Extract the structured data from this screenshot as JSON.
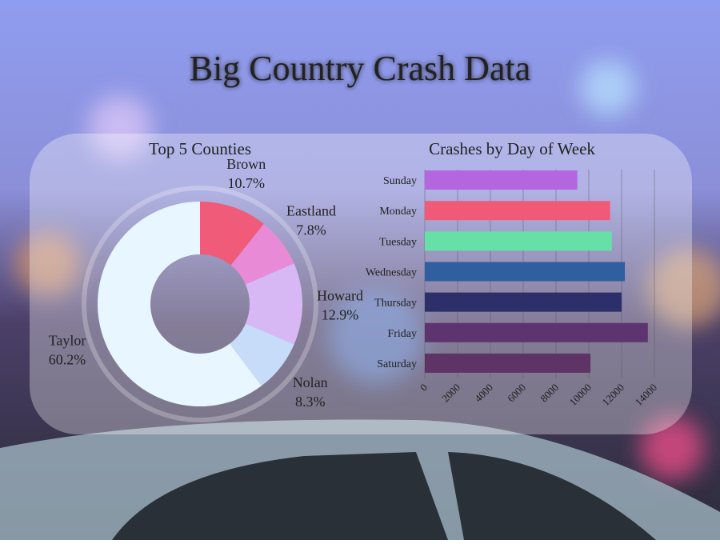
{
  "title": "Big Country Crash Data",
  "chart_data": [
    {
      "type": "donut",
      "title": "Top 5 Counties",
      "categories": [
        "Brown",
        "Eastland",
        "Howard",
        "Nolan",
        "Taylor"
      ],
      "values": [
        10.7,
        7.8,
        12.9,
        8.3,
        60.2
      ],
      "value_labels": [
        "10.7%",
        "7.8%",
        "12.9%",
        "8.3%",
        "60.2%"
      ],
      "colors": [
        "#ef5b78",
        "#e88ad6",
        "#d7b8f5",
        "#c7dcf9",
        "#e8f6ff"
      ]
    },
    {
      "type": "hbar",
      "title": "Crashes by Day of Week",
      "categories": [
        "Sunday",
        "Monday",
        "Tuesday",
        "Wednesday",
        "Thursday",
        "Friday",
        "Saturday"
      ],
      "values": [
        9300,
        11300,
        11400,
        12200,
        12000,
        13600,
        10100
      ],
      "colors": [
        "#b366e0",
        "#f05a78",
        "#66e0a6",
        "#2f5f9e",
        "#2d2f6b",
        "#5e3470",
        "#5e3466"
      ],
      "xlim": [
        0,
        14000
      ],
      "xticks": [
        0,
        2000,
        4000,
        6000,
        8000,
        10000,
        12000,
        14000
      ],
      "grid": true
    }
  ]
}
